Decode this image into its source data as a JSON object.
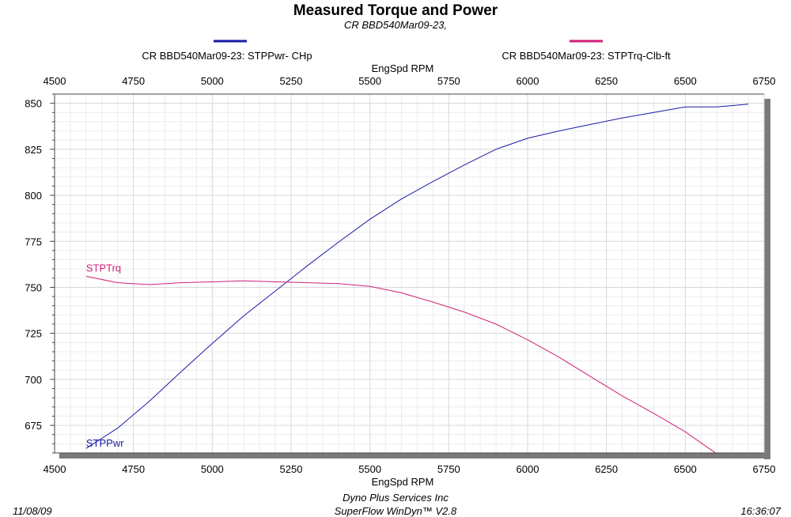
{
  "header": {
    "title": "Measured Torque and Power",
    "subtitle": "CR BBD540Mar09-23,"
  },
  "legend": {
    "power_label": "CR BBD540Mar09-23: STPPwr- CHp",
    "torque_label": "CR BBD540Mar09-23: STPTrq-Clb-ft"
  },
  "footer": {
    "date": "11/08/09",
    "company": "Dyno Plus Services Inc",
    "software": "SuperFlow WinDyn™ V2.8",
    "time": "16:36:07"
  },
  "colors": {
    "power": "#1a1aa8",
    "torque": "#d0207a",
    "grid": "#d7d7d7",
    "shadow": "#7a7a7a"
  },
  "chart_data": {
    "type": "line",
    "title": "Measured Torque and Power",
    "subtitle": "CR BBD540Mar09-23,",
    "xlabel": "EngSpd  RPM",
    "ylabel": "",
    "xlim": [
      4500,
      6750
    ],
    "ylim": [
      660,
      855
    ],
    "x_ticks": [
      4500,
      4750,
      5000,
      5250,
      5500,
      5750,
      6000,
      6250,
      6500,
      6750
    ],
    "y_ticks": [
      675,
      700,
      725,
      750,
      775,
      800,
      825,
      850
    ],
    "grid": true,
    "legend_position": "top",
    "x": [
      4600,
      4700,
      4800,
      4900,
      5000,
      5100,
      5200,
      5300,
      5400,
      5500,
      5600,
      5700,
      5800,
      5900,
      6000,
      6100,
      6200,
      6300,
      6400,
      6500,
      6600,
      6700
    ],
    "series": [
      {
        "name": "STPPwr",
        "label": "STPPwr",
        "color": "#1a1aa8",
        "values": [
          662.5,
          673.5,
          688,
          704,
          719.5,
          734.5,
          748,
          761.5,
          774.5,
          787,
          798,
          807.5,
          816.5,
          825,
          831,
          835,
          838.5,
          842,
          845,
          848,
          848,
          849.5
        ]
      },
      {
        "name": "STPTrq",
        "label": "STPTrq",
        "color": "#d0207a",
        "values": [
          756,
          752.5,
          751.5,
          752.5,
          753,
          753.5,
          753,
          752.5,
          752,
          750.5,
          747,
          742,
          736.5,
          730,
          721.5,
          712,
          701.5,
          691,
          681.5,
          671.5,
          659.5,
          650
        ]
      }
    ]
  }
}
